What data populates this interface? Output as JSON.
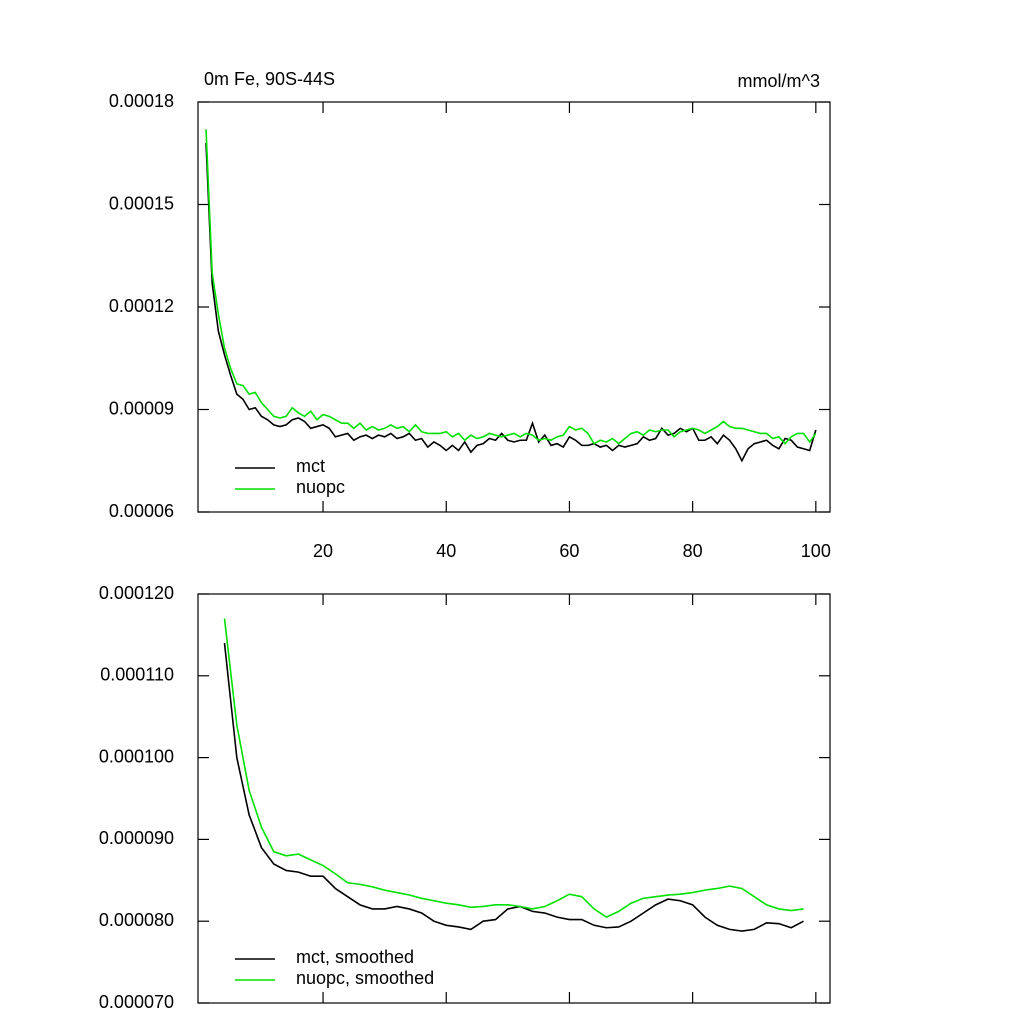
{
  "chart_data": [
    {
      "type": "line",
      "title": "0m Fe, 90S-44S",
      "y_units": "mmol/m^3",
      "x": [
        1,
        2,
        3,
        4,
        5,
        6,
        7,
        8,
        9,
        10,
        11,
        12,
        13,
        14,
        15,
        16,
        17,
        18,
        19,
        20,
        21,
        22,
        23,
        24,
        25,
        26,
        27,
        28,
        29,
        30,
        31,
        32,
        33,
        34,
        35,
        36,
        37,
        38,
        39,
        40,
        41,
        42,
        43,
        44,
        45,
        46,
        47,
        48,
        49,
        50,
        51,
        52,
        53,
        54,
        55,
        56,
        57,
        58,
        59,
        60,
        61,
        62,
        63,
        64,
        65,
        66,
        67,
        68,
        69,
        70,
        71,
        72,
        73,
        74,
        75,
        76,
        77,
        78,
        79,
        80,
        81,
        82,
        83,
        84,
        85,
        86,
        87,
        88,
        89,
        90,
        91,
        92,
        93,
        94,
        95,
        96,
        97,
        98,
        99,
        100
      ],
      "series": [
        {
          "name": "mct",
          "color": "#000000",
          "values": [
            0.000168,
            0.000127,
            0.000113,
            0.000106,
            0.0001,
            9.45e-05,
            9.3e-05,
            9e-05,
            9.05e-05,
            8.8e-05,
            8.7e-05,
            8.55e-05,
            8.5e-05,
            8.55e-05,
            8.7e-05,
            8.75e-05,
            8.65e-05,
            8.45e-05,
            8.5e-05,
            8.55e-05,
            8.45e-05,
            8.2e-05,
            8.25e-05,
            8.3e-05,
            8.1e-05,
            8.2e-05,
            8.25e-05,
            8.15e-05,
            8.25e-05,
            8.2e-05,
            8.3e-05,
            8.15e-05,
            8.2e-05,
            8.3e-05,
            8.1e-05,
            8.15e-05,
            7.9e-05,
            8.05e-05,
            7.95e-05,
            7.8e-05,
            7.95e-05,
            7.8e-05,
            8.05e-05,
            7.75e-05,
            7.95e-05,
            8e-05,
            8.15e-05,
            8.1e-05,
            8.3e-05,
            8.1e-05,
            8.05e-05,
            8.1e-05,
            8.1e-05,
            8.6e-05,
            8.05e-05,
            8.25e-05,
            7.95e-05,
            8e-05,
            7.9e-05,
            8.2e-05,
            8.1e-05,
            7.95e-05,
            7.95e-05,
            8e-05,
            7.9e-05,
            7.95e-05,
            7.8e-05,
            7.95e-05,
            7.9e-05,
            7.95e-05,
            8e-05,
            8.2e-05,
            8.1e-05,
            8.15e-05,
            8.45e-05,
            8.25e-05,
            8.3e-05,
            8.45e-05,
            8.35e-05,
            8.45e-05,
            8.1e-05,
            8.1e-05,
            8.2e-05,
            8e-05,
            8.25e-05,
            8.1e-05,
            7.85e-05,
            7.5e-05,
            7.85e-05,
            8e-05,
            8.05e-05,
            8.1e-05,
            7.95e-05,
            7.85e-05,
            8.15e-05,
            8.1e-05,
            7.9e-05,
            7.85e-05,
            7.8e-05,
            8.4e-05
          ]
        },
        {
          "name": "nuopc",
          "color": "#00e000",
          "values": [
            0.000172,
            0.00013,
            0.000118,
            0.000108,
            0.000102,
            9.75e-05,
            9.7e-05,
            9.45e-05,
            9.5e-05,
            9.2e-05,
            9e-05,
            8.8e-05,
            8.75e-05,
            8.8e-05,
            9.05e-05,
            8.9e-05,
            8.8e-05,
            8.95e-05,
            8.7e-05,
            8.85e-05,
            8.8e-05,
            8.7e-05,
            8.6e-05,
            8.6e-05,
            8.45e-05,
            8.6e-05,
            8.4e-05,
            8.5e-05,
            8.4e-05,
            8.45e-05,
            8.55e-05,
            8.45e-05,
            8.5e-05,
            8.35e-05,
            8.55e-05,
            8.35e-05,
            8.3e-05,
            8.3e-05,
            8.3e-05,
            8.35e-05,
            8.2e-05,
            8.3e-05,
            8.1e-05,
            8.25e-05,
            8.15e-05,
            8.2e-05,
            8.3e-05,
            8.25e-05,
            8.2e-05,
            8.25e-05,
            8.3e-05,
            8.2e-05,
            8.3e-05,
            8.25e-05,
            8.1e-05,
            8.15e-05,
            8.1e-05,
            8.2e-05,
            8.25e-05,
            8.5e-05,
            8.4e-05,
            8.45e-05,
            8.3e-05,
            8e-05,
            8.1e-05,
            8.05e-05,
            8.15e-05,
            8e-05,
            8.15e-05,
            8.3e-05,
            8.35e-05,
            8.25e-05,
            8.4e-05,
            8.35e-05,
            8.4e-05,
            8.4e-05,
            8.2e-05,
            8.35e-05,
            8.4e-05,
            8.45e-05,
            8.4e-05,
            8.3e-05,
            8.4e-05,
            8.5e-05,
            8.65e-05,
            8.5e-05,
            8.45e-05,
            8.45e-05,
            8.4e-05,
            8.35e-05,
            8.3e-05,
            8.3e-05,
            8.15e-05,
            8.2e-05,
            8e-05,
            8.2e-05,
            8.3e-05,
            8.3e-05,
            8.05e-05,
            8.3e-05
          ]
        }
      ],
      "xlim": [
        -0.3,
        102.3
      ],
      "xticks": [
        20,
        40,
        60,
        80,
        100
      ],
      "show_xtick_labels": true,
      "ylim": [
        6e-05,
        0.00018
      ],
      "yticks": [
        6e-05,
        9e-05,
        0.00012,
        0.00015,
        0.00018
      ],
      "legend": "lower left"
    },
    {
      "type": "line",
      "x": [
        4,
        6,
        8,
        10,
        12,
        14,
        16,
        18,
        20,
        22,
        24,
        26,
        28,
        30,
        32,
        34,
        36,
        38,
        40,
        42,
        44,
        46,
        48,
        50,
        52,
        54,
        56,
        58,
        60,
        62,
        64,
        66,
        68,
        70,
        72,
        74,
        76,
        78,
        80,
        82,
        84,
        86,
        88,
        90,
        92,
        94,
        96,
        98
      ],
      "series": [
        {
          "name": "mct, smoothed",
          "color": "#000000",
          "values": [
            0.000114,
            0.0001,
            9.3e-05,
            8.9e-05,
            8.7e-05,
            8.62e-05,
            8.6e-05,
            8.55e-05,
            8.55e-05,
            8.4e-05,
            8.3e-05,
            8.2e-05,
            8.15e-05,
            8.15e-05,
            8.18e-05,
            8.15e-05,
            8.1e-05,
            8e-05,
            7.95e-05,
            7.93e-05,
            7.9e-05,
            8e-05,
            8.02e-05,
            8.15e-05,
            8.18e-05,
            8.12e-05,
            8.1e-05,
            8.05e-05,
            8.02e-05,
            8.02e-05,
            7.95e-05,
            7.92e-05,
            7.93e-05,
            8e-05,
            8.1e-05,
            8.2e-05,
            8.27e-05,
            8.25e-05,
            8.2e-05,
            8.05e-05,
            7.95e-05,
            7.9e-05,
            7.88e-05,
            7.9e-05,
            7.98e-05,
            7.97e-05,
            7.92e-05,
            8e-05
          ]
        },
        {
          "name": "nuopc, smoothed",
          "color": "#00e000",
          "values": [
            0.000117,
            0.000104,
            9.6e-05,
            9.15e-05,
            8.85e-05,
            8.8e-05,
            8.82e-05,
            8.75e-05,
            8.68e-05,
            8.58e-05,
            8.47e-05,
            8.45e-05,
            8.42e-05,
            8.38e-05,
            8.35e-05,
            8.32e-05,
            8.28e-05,
            8.25e-05,
            8.22e-05,
            8.2e-05,
            8.17e-05,
            8.18e-05,
            8.2e-05,
            8.2e-05,
            8.18e-05,
            8.15e-05,
            8.18e-05,
            8.25e-05,
            8.33e-05,
            8.3e-05,
            8.15e-05,
            8.05e-05,
            8.12e-05,
            8.22e-05,
            8.28e-05,
            8.3e-05,
            8.32e-05,
            8.33e-05,
            8.35e-05,
            8.38e-05,
            8.4e-05,
            8.43e-05,
            8.4e-05,
            8.3e-05,
            8.2e-05,
            8.15e-05,
            8.13e-05,
            8.15e-05
          ]
        }
      ],
      "xlim": [
        -0.3,
        102.3
      ],
      "xticks": [
        20,
        40,
        60,
        80,
        100
      ],
      "show_xtick_labels": false,
      "ylim": [
        7e-05,
        0.00012
      ],
      "yticks": [
        {
          "value": 7e-05,
          "label": "0.000070"
        },
        {
          "value": 8e-05,
          "label": "0.000080"
        },
        {
          "value": 9e-05,
          "label": "0.000090"
        },
        {
          "value": 0.0001,
          "label": "0.000100"
        },
        {
          "value": 0.00011,
          "label": "0.000110"
        },
        {
          "value": 0.00012,
          "label": "0.000120"
        }
      ],
      "legend": "lower left"
    }
  ]
}
